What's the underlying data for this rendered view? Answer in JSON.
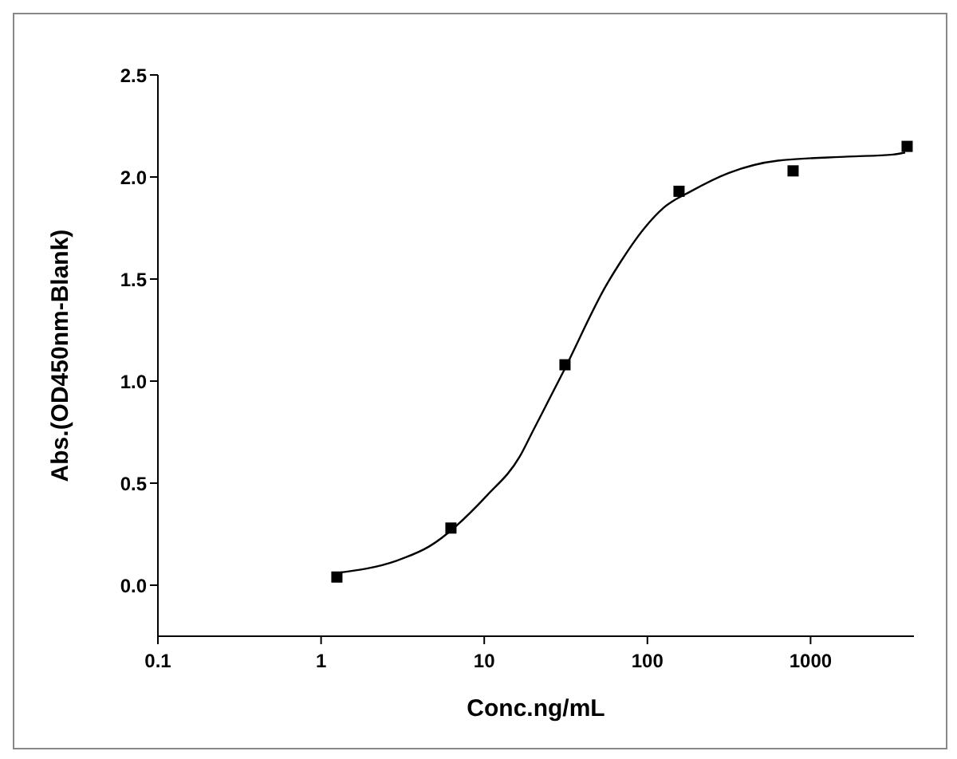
{
  "chart_data": {
    "type": "scatter",
    "xlabel": "Conc.ng/mL",
    "ylabel": "Abs.(OD450nm-Blank)",
    "log": "x",
    "xlim": [
      0.1,
      4300
    ],
    "xticks": [
      0.1,
      1,
      10,
      100,
      1000
    ],
    "ylim": [
      -0.25,
      2.5
    ],
    "yticks": [
      {
        "value": 0,
        "label": "0.0"
      },
      0.5,
      {
        "value": 1,
        "label": "1.0"
      },
      1.5,
      {
        "value": 2,
        "label": "2.0"
      },
      2.5
    ],
    "series": [
      {
        "marker": "square",
        "color": "#000000",
        "x": [
          1.25,
          6.25,
          31.25,
          156.25,
          781.25,
          3906.25
        ],
        "values": [
          0.04,
          0.28,
          1.08,
          1.93,
          2.03,
          2.15
        ]
      },
      {
        "type": "line",
        "marker": "none",
        "line_style": "solid",
        "color": "#000000",
        "x": [
          1.25,
          2.9,
          4.6,
          10.4,
          16.5,
          20,
          30.7,
          56,
          68,
          96,
          126,
          185,
          316,
          630,
          1700,
          3200,
          3800
        ],
        "values": [
          0.06,
          0.12,
          0.19,
          0.44,
          0.63,
          0.76,
          1.05,
          1.47,
          1.58,
          1.75,
          1.85,
          1.93,
          2.02,
          2.08,
          2.1,
          2.11,
          2.12
        ]
      }
    ]
  }
}
